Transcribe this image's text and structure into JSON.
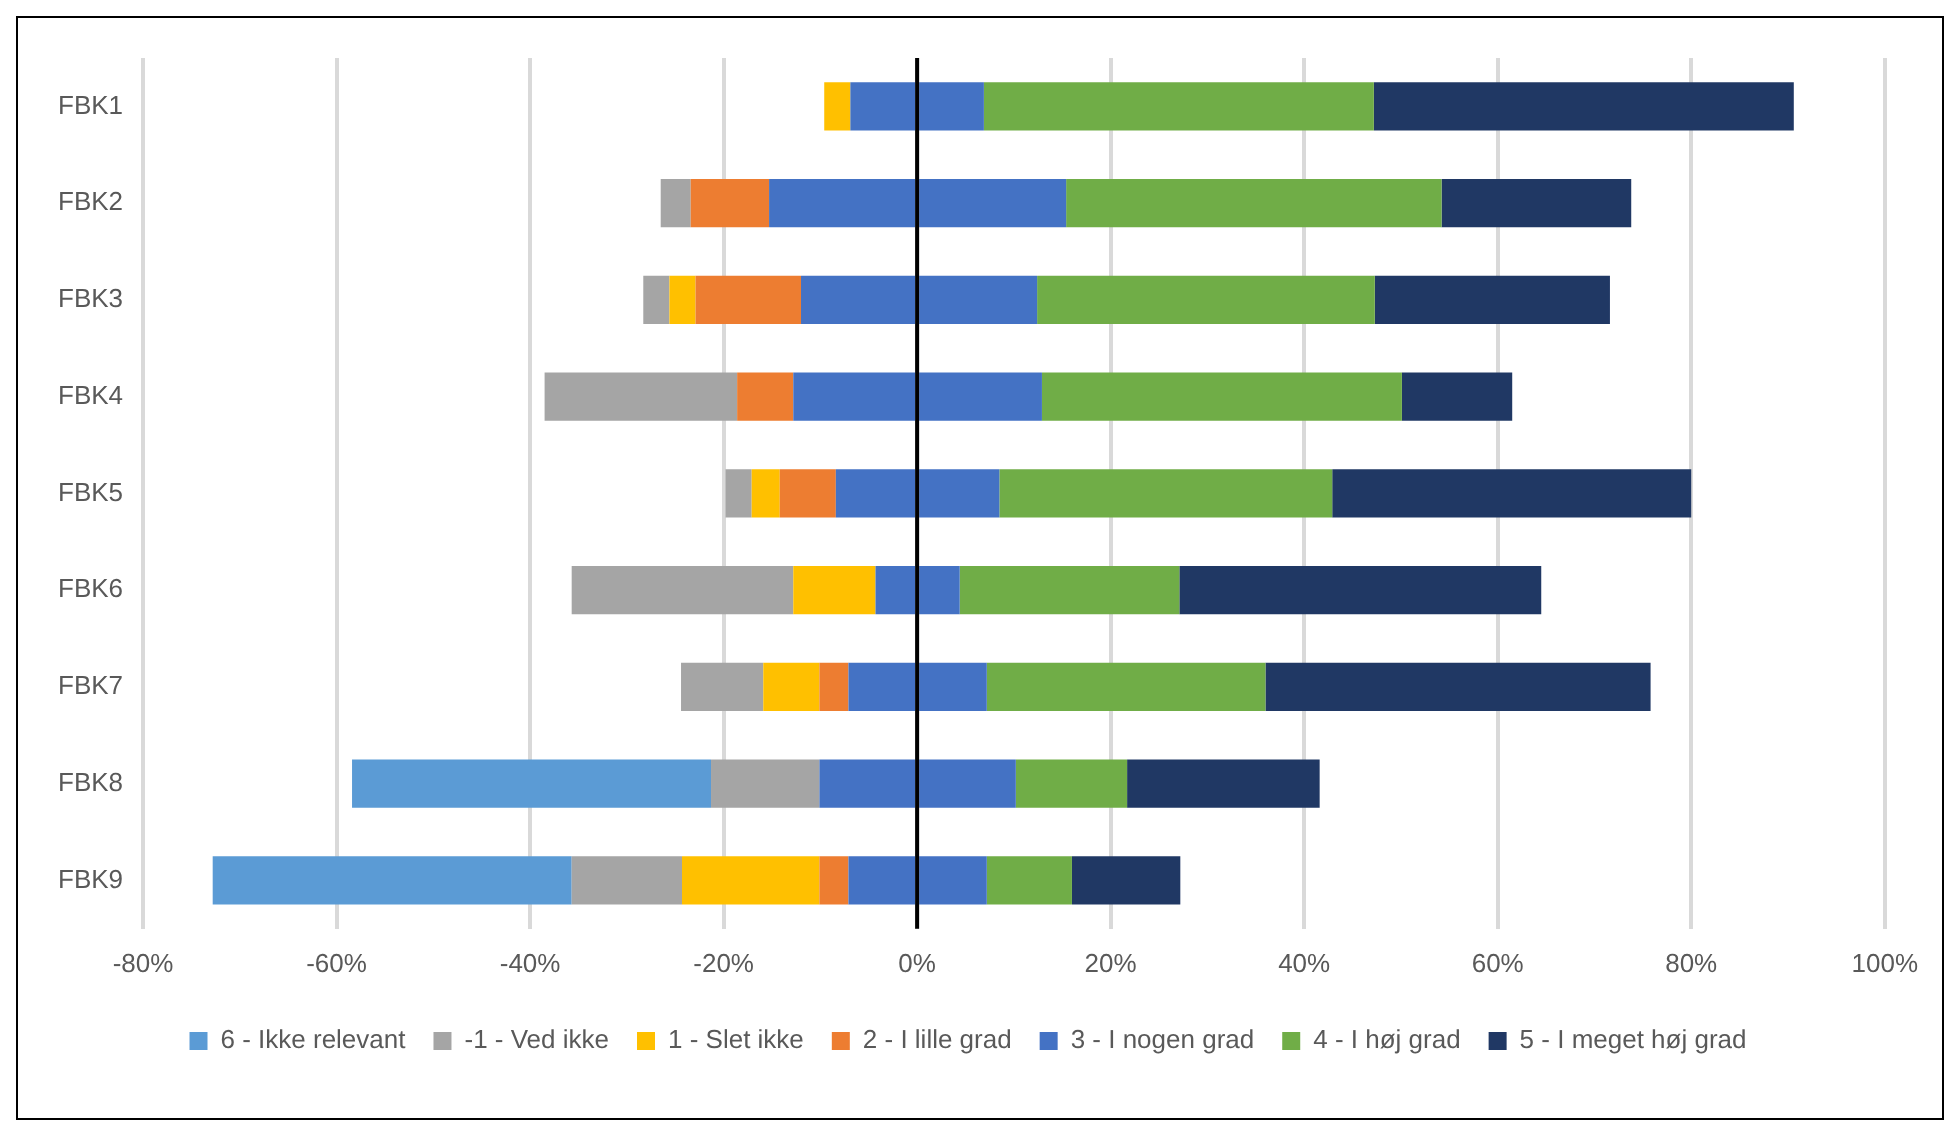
{
  "chart_data": {
    "type": "bar",
    "orientation": "horizontal",
    "stacked": true,
    "categories": [
      "FBK1",
      "FBK2",
      "FBK3",
      "FBK4",
      "FBK5",
      "FBK6",
      "FBK7",
      "FBK8",
      "FBK9"
    ],
    "series": [
      {
        "color": "#4472c4",
        "values": [
          -6.9,
          -15.3,
          -12.0,
          -12.8,
          -8.4,
          -4.3,
          -7.1,
          -10.1,
          -7.1
        ]
      },
      {
        "name": "2 - I lille grad",
        "color": "#ed7d31",
        "values": [
          0,
          -8.1,
          -10.9,
          -5.8,
          -5.8,
          0,
          -3.0,
          0,
          -3.0
        ]
      },
      {
        "name": "1 - Slet ikke",
        "color": "#ffc000",
        "values": [
          -2.7,
          0,
          -2.7,
          0,
          -2.9,
          -8.5,
          -5.8,
          0,
          -14.2
        ]
      },
      {
        "name": "-1 - Ved ikke",
        "color": "#a5a5a5",
        "values": [
          0,
          -3.1,
          -2.7,
          -19.9,
          -2.7,
          -22.9,
          -8.5,
          -11.2,
          -11.4
        ]
      },
      {
        "name": "6 - Ikke relevant",
        "color": "#5b9bd5",
        "values": [
          0,
          0,
          0,
          0,
          0,
          0,
          0,
          -37.1,
          -37.1
        ]
      },
      {
        "name": "3 - I nogen grad",
        "color": "#4472c4",
        "values": [
          6.9,
          15.4,
          12.4,
          12.9,
          8.5,
          4.4,
          7.2,
          10.2,
          7.2
        ]
      },
      {
        "name": "4 - I høj grad",
        "color": "#70ad47",
        "values": [
          40.3,
          38.8,
          34.9,
          37.2,
          34.4,
          22.7,
          28.8,
          11.5,
          8.8
        ]
      },
      {
        "name": "5 - I meget høj grad",
        "color": "#203864",
        "values": [
          43.4,
          19.6,
          24.3,
          11.4,
          37.1,
          37.4,
          39.8,
          19.9,
          11.2
        ]
      }
    ],
    "xlim": [
      -80,
      100
    ],
    "xticks": [
      {
        "value": -80,
        "label": "-80%"
      },
      {
        "value": -60,
        "label": "-60%"
      },
      {
        "value": -40,
        "label": "-40%"
      },
      {
        "value": -20,
        "label": "-20%"
      },
      {
        "value": 0,
        "label": "0%"
      },
      {
        "value": 20,
        "label": "20%"
      },
      {
        "value": 40,
        "label": "40%"
      },
      {
        "value": 60,
        "label": "60%"
      },
      {
        "value": 80,
        "label": "80%"
      },
      {
        "value": 100,
        "label": "100%"
      }
    ],
    "ref_lines": [
      {
        "axis": "x",
        "value": 0,
        "color": "#000000"
      }
    ],
    "grid": "x",
    "legend": "bottom"
  }
}
